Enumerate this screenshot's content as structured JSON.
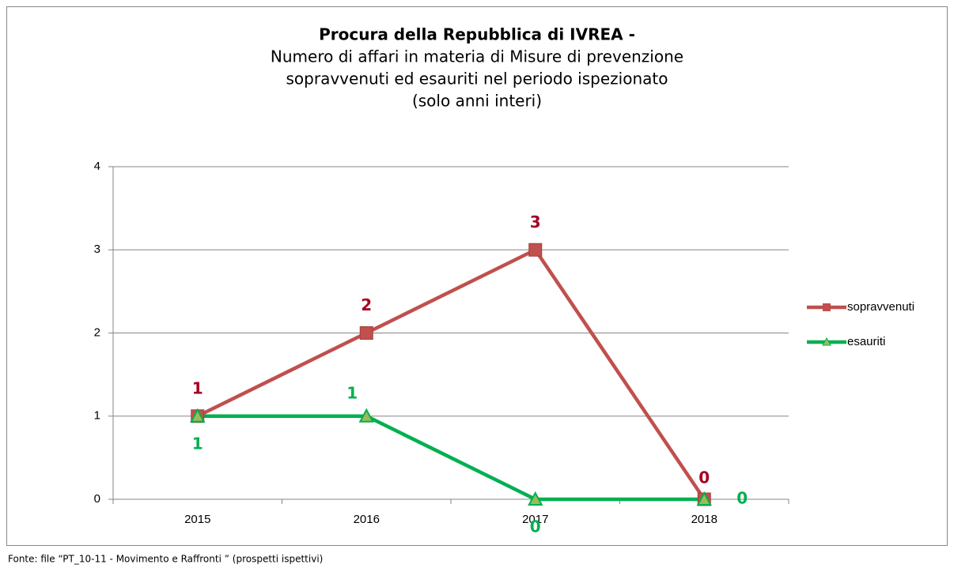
{
  "chart_data": {
    "type": "line",
    "title": [
      "Procura della Repubblica di IVREA -",
      "Numero di affari in materia di Misure di prevenzione",
      "sopravvenuti ed esauriti nel periodo ispezionato",
      "(solo anni interi)"
    ],
    "categories": [
      "2015",
      "2016",
      "2017",
      "2018"
    ],
    "series": [
      {
        "name": "sopravvenuti",
        "color": "#c0504d",
        "label_color": "#a50021",
        "marker": "square",
        "values": [
          1,
          2,
          3,
          0
        ]
      },
      {
        "name": "esauriti",
        "color": "#00b050",
        "label_color": "#00b050",
        "marker": "triangle",
        "values": [
          1,
          1,
          0,
          0
        ]
      }
    ],
    "ylim": [
      0,
      4
    ],
    "yticks": [
      0,
      1,
      2,
      3,
      4
    ],
    "grid": true,
    "legend": "right",
    "source": "Fonte: file “PT_10-11 - Movimento e Raffronti ” (prospetti ispettivi)"
  }
}
